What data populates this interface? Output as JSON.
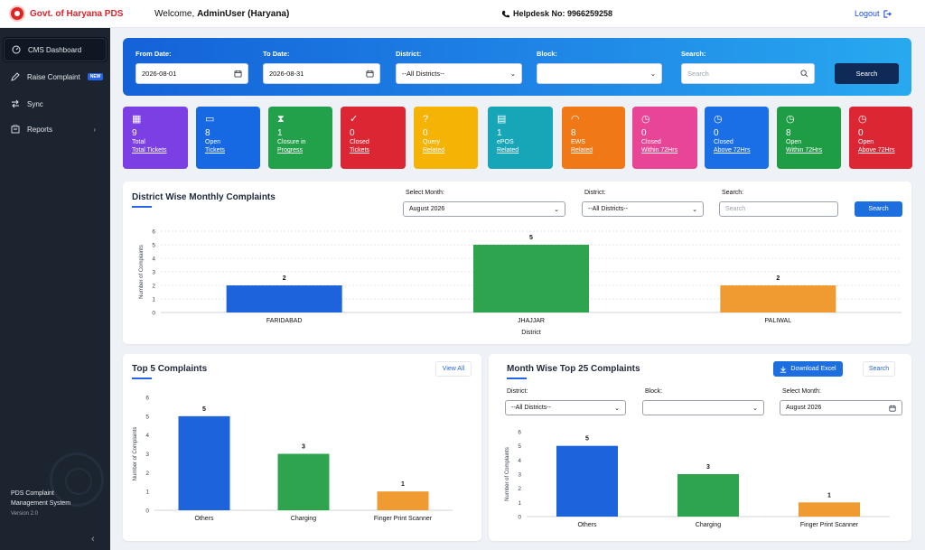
{
  "header": {
    "brand": "Govt. of Haryana PDS",
    "welcome_prefix": "Welcome, ",
    "welcome_user": "AdminUser (Haryana)",
    "helpdesk": "Helpdesk No: 9966259258",
    "logout": "Logout"
  },
  "sidebar": {
    "items": [
      {
        "label": "CMS Dashboard",
        "icon": "dashboard-icon",
        "active": true
      },
      {
        "label": "Raise Complaint",
        "icon": "pen-icon",
        "badge": "NEW"
      },
      {
        "label": "Sync",
        "icon": "sync-icon"
      },
      {
        "label": "Reports",
        "icon": "report-icon"
      }
    ],
    "system_name": "PDS Complaint Management System",
    "version": "Version 2.0"
  },
  "filters": {
    "from_date_label": "From Date:",
    "from_date": "2026-08-01",
    "to_date_label": "To Date:",
    "to_date": "2026-08-31",
    "district_label": "District:",
    "district_value": "--All Districts--",
    "block_label": "Block:",
    "block_value": "",
    "search_label": "Search:",
    "search_placeholder": "Search",
    "search_button": "Search"
  },
  "cards": [
    {
      "num": "9",
      "l1": "Total",
      "l2": "Total Tickets",
      "color": "#7b3fe4",
      "icon": "calculator-icon"
    },
    {
      "num": "8",
      "l1": "Open",
      "l2": "Tickets",
      "color": "#1668e3",
      "icon": "folder-icon"
    },
    {
      "num": "1",
      "l1": "Closure in",
      "l2": "Progress",
      "color": "#23a04a",
      "icon": "hourglass-icon"
    },
    {
      "num": "0",
      "l1": "Closed",
      "l2": "Tickets",
      "color": "#dc2633",
      "icon": "check-circle-icon"
    },
    {
      "num": "0",
      "l1": "Query",
      "l2": "Related",
      "color": "#f5b306",
      "icon": "question-icon"
    },
    {
      "num": "1",
      "l1": "ePOS",
      "l2": "Related",
      "color": "#17a6b8",
      "icon": "document-icon"
    },
    {
      "num": "8",
      "l1": "EWS",
      "l2": "Related",
      "color": "#f07816",
      "icon": "wifi-icon"
    },
    {
      "num": "0",
      "l1": "Closed",
      "l2": "Within 72Hrs",
      "color": "#e94596",
      "icon": "clock-icon"
    },
    {
      "num": "0",
      "l1": "Closed",
      "l2": "Above 72Hrs",
      "color": "#1a6ee6",
      "icon": "clock-icon"
    },
    {
      "num": "8",
      "l1": "Open",
      "l2": "Within 72Hrs",
      "color": "#1f9d45",
      "icon": "clock-icon"
    },
    {
      "num": "0",
      "l1": "Open",
      "l2": "Above 72Hrs",
      "color": "#dc2633",
      "icon": "clock-icon"
    }
  ],
  "district_panel": {
    "title": "District Wise Monthly Complaints",
    "month_label": "Select Month:",
    "month_value": "August 2026",
    "district_label": "District:",
    "district_value": "--All Districts--",
    "search_label": "Search:",
    "search_placeholder": "Search",
    "search_button": "Search"
  },
  "top5_panel": {
    "title": "Top 5 Complaints",
    "view_all": "View All"
  },
  "month_panel": {
    "title": "Month Wise Top 25 Complaints",
    "download": "Download Excel",
    "search_button": "Search",
    "district_label": "District:",
    "district_value": "--All Districts--",
    "block_label": "Block:",
    "block_value": "",
    "month_label": "Select Month:",
    "month_value": "August 2026"
  },
  "chart_data": [
    {
      "type": "bar",
      "categories": [
        "FARIDABAD",
        "JHAJJAR",
        "PALIWAL"
      ],
      "values": [
        2,
        5,
        2
      ],
      "colors": [
        "#1d63db",
        "#2ea44f",
        "#f09a32"
      ],
      "xlabel": "District",
      "ylabel": "Number of Complaints",
      "ylim": [
        0,
        6
      ],
      "grid": true
    },
    {
      "type": "bar",
      "categories": [
        "Others",
        "Charging",
        "Finger Print Scanner"
      ],
      "values": [
        5,
        3,
        1
      ],
      "colors": [
        "#1d63db",
        "#2ea44f",
        "#f09a32"
      ],
      "xlabel": "",
      "ylabel": "Number of Complaints",
      "ylim": [
        0,
        6
      ],
      "grid": false
    },
    {
      "type": "bar",
      "categories": [
        "Others",
        "Charging",
        "Finger Print Scanner"
      ],
      "values": [
        5,
        3,
        1
      ],
      "colors": [
        "#1d63db",
        "#2ea44f",
        "#f09a32"
      ],
      "xlabel": "",
      "ylabel": "Number of Complaints",
      "ylim": [
        0,
        6
      ],
      "grid": false
    }
  ]
}
